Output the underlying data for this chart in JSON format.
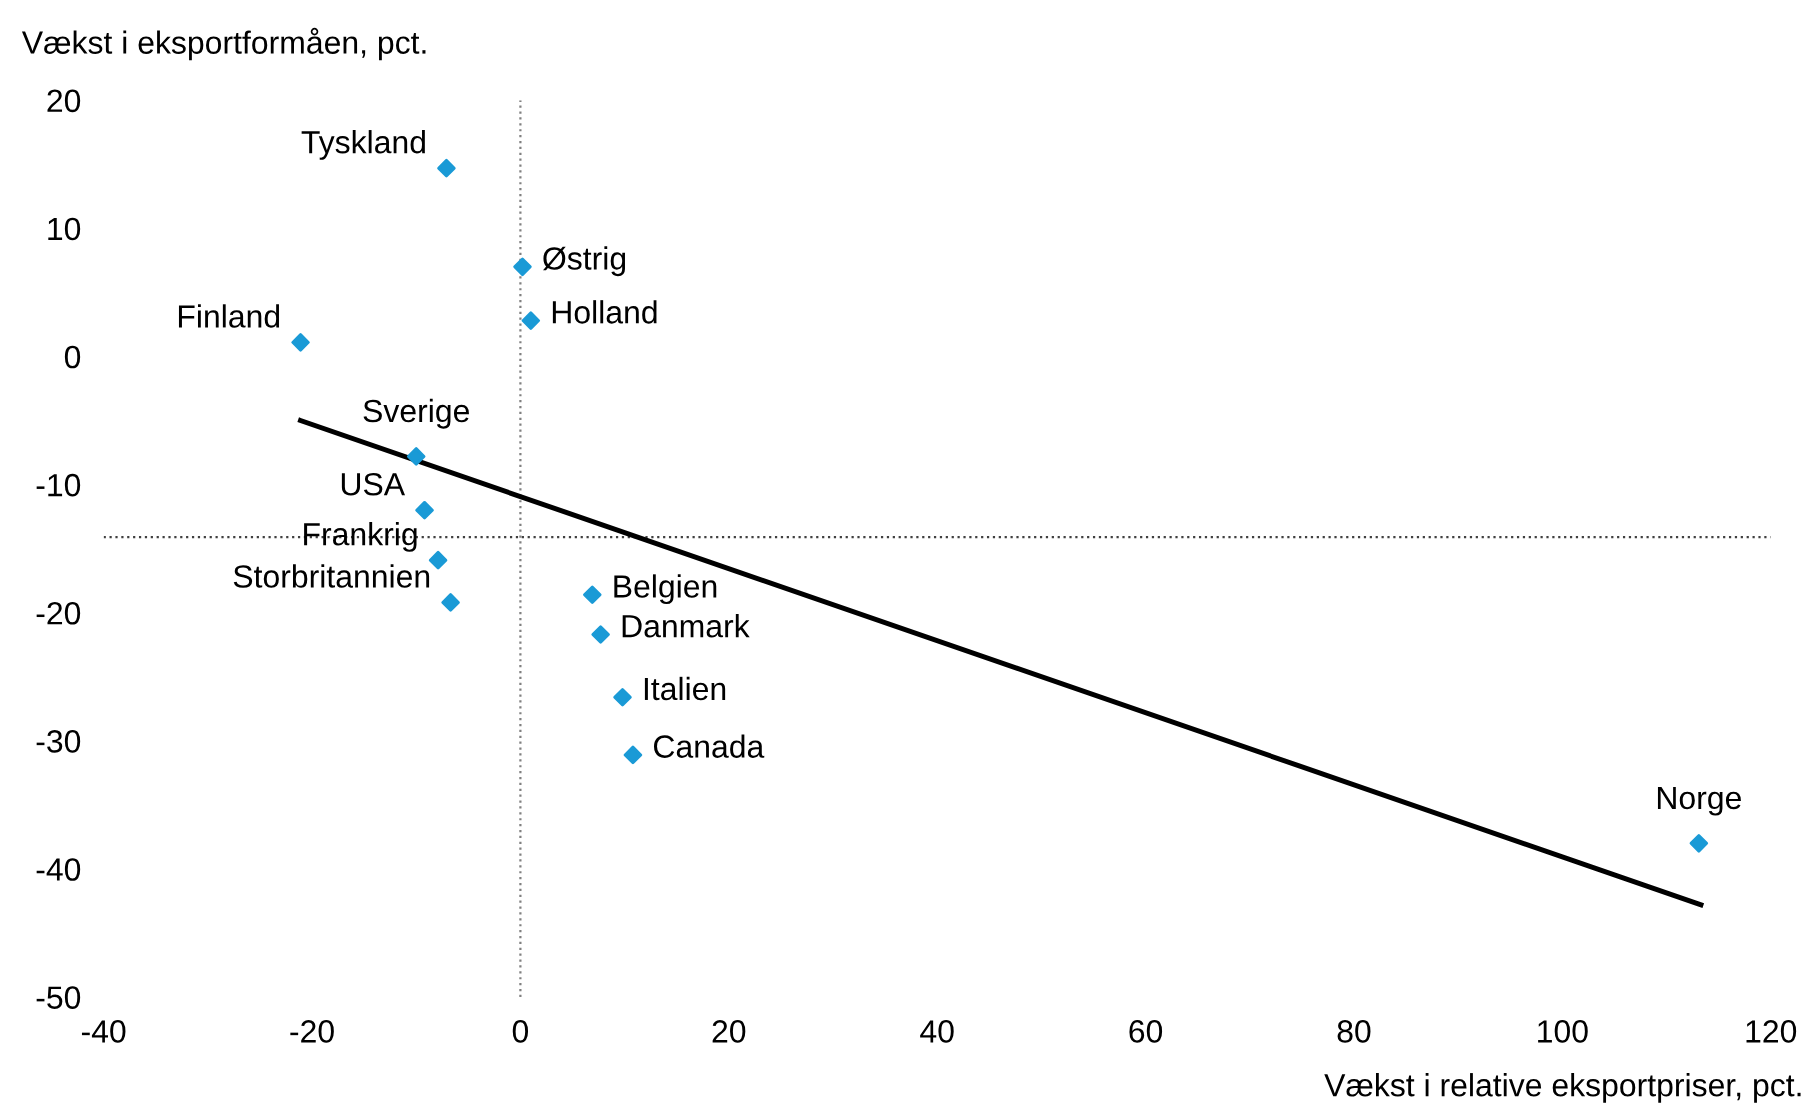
{
  "chart_data": {
    "type": "scatter",
    "xlabel": "Vækst i relative eksportpriser, pct.",
    "ylabel": "Vækst i eksportformåen, pct.",
    "xlim": [
      -40,
      120
    ],
    "xticks": [
      -40,
      -20,
      0,
      20,
      40,
      60,
      80,
      100,
      120
    ],
    "ylim": [
      -50,
      20
    ],
    "yticks": [
      -50,
      -40,
      -30,
      -20,
      -10,
      0,
      10,
      20
    ],
    "grid": false,
    "legend": false,
    "series": [
      {
        "marker": "diamond",
        "color": "#1a9ad6",
        "x": [
          -7.1,
          0.2,
          1.0,
          -21.1,
          -10.0,
          -9.2,
          -7.9,
          -6.7,
          6.9,
          7.7,
          9.8,
          10.8,
          113.1
        ],
        "values": [
          14.7,
          7.0,
          2.8,
          1.1,
          -7.8,
          -12.0,
          -15.9,
          -19.2,
          -18.6,
          -21.7,
          -26.6,
          -31.1,
          -38.0
        ]
      },
      {
        "type": "line",
        "color": "#000000",
        "x": [
          -21.1,
          113.3
        ],
        "values": [
          -5.0,
          -42.8
        ]
      }
    ],
    "ref_lines": [
      {
        "axis": "x",
        "value": 0,
        "color": "#808080",
        "line_style": "dotted"
      },
      {
        "axis": "y",
        "value": -14.1,
        "color": "#404040",
        "line_style": "dotted"
      }
    ],
    "annotations": [
      {
        "text": "Tyskland",
        "x": -7.1,
        "y": 14.7
      },
      {
        "text": "Østrig",
        "x": 0.2,
        "y": 7.0
      },
      {
        "text": "Holland",
        "x": 1.0,
        "y": 2.8
      },
      {
        "text": "Finland",
        "x": -21.1,
        "y": 1.1
      },
      {
        "text": "Sverige",
        "x": -10.0,
        "y": -7.8
      },
      {
        "text": "USA",
        "x": -9.2,
        "y": -12.0
      },
      {
        "text": "Frankrig",
        "x": -7.9,
        "y": -15.9
      },
      {
        "text": "Storbritannien",
        "x": -6.7,
        "y": -19.2
      },
      {
        "text": "Belgien",
        "x": 6.9,
        "y": -18.6
      },
      {
        "text": "Danmark",
        "x": 7.7,
        "y": -21.7
      },
      {
        "text": "Italien",
        "x": 9.8,
        "y": -26.6
      },
      {
        "text": "Canada",
        "x": 10.8,
        "y": -31.1
      },
      {
        "text": "Norge",
        "x": 113.1,
        "y": -38.0
      }
    ]
  }
}
